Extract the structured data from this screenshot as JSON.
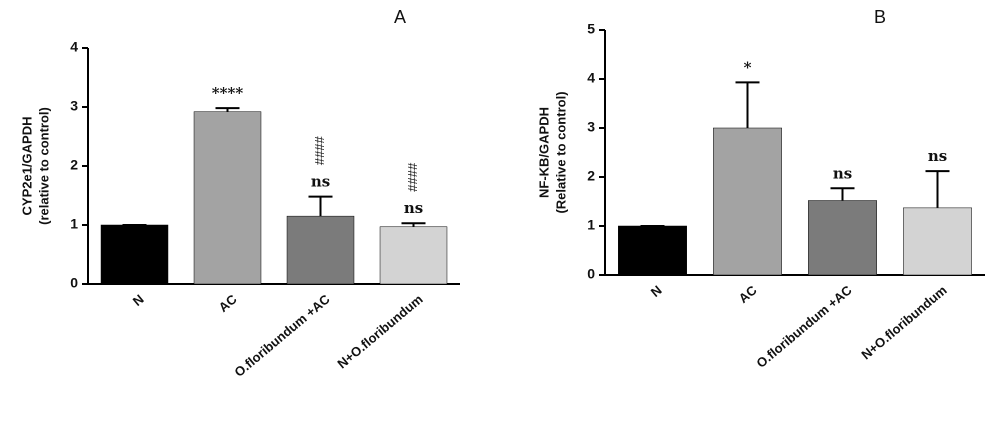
{
  "chart_data": [
    {
      "type": "bar",
      "title": "A",
      "y_label": [
        "CYP2e1/GAPDH",
        "(relative to control)"
      ],
      "categories": [
        "N",
        "AC",
        "O.floribundum +AC",
        "N+O.floribundum"
      ],
      "values": [
        1.0,
        2.92,
        1.15,
        0.97
      ],
      "errors": [
        0,
        0.06,
        0.33,
        0.06
      ],
      "colors": [
        "#000000",
        "#a3a3a3",
        "#7b7b7b",
        "#d3d3d3"
      ],
      "annotations": [
        null,
        [
          "****"
        ],
        [
          "ns",
          "####"
        ],
        [
          "ns",
          "####"
        ]
      ],
      "ylim": [
        0,
        4
      ],
      "yticks": [
        0,
        1,
        2,
        3,
        4
      ]
    },
    {
      "type": "bar",
      "title": "B",
      "y_label": [
        "NF-KB/GAPDH",
        "(Relative to control)"
      ],
      "categories": [
        "N",
        "AC",
        "O.floribundum +AC",
        "N+O.floribundum"
      ],
      "values": [
        1.0,
        3.0,
        1.52,
        1.37
      ],
      "errors": [
        0,
        0.93,
        0.25,
        0.75
      ],
      "colors": [
        "#000000",
        "#a3a3a3",
        "#7b7b7b",
        "#d3d3d3"
      ],
      "annotations": [
        null,
        [
          "*"
        ],
        [
          "ns"
        ],
        [
          "ns"
        ]
      ],
      "ylim": [
        0,
        5
      ],
      "yticks": [
        0,
        1,
        2,
        3,
        4,
        5
      ]
    }
  ]
}
